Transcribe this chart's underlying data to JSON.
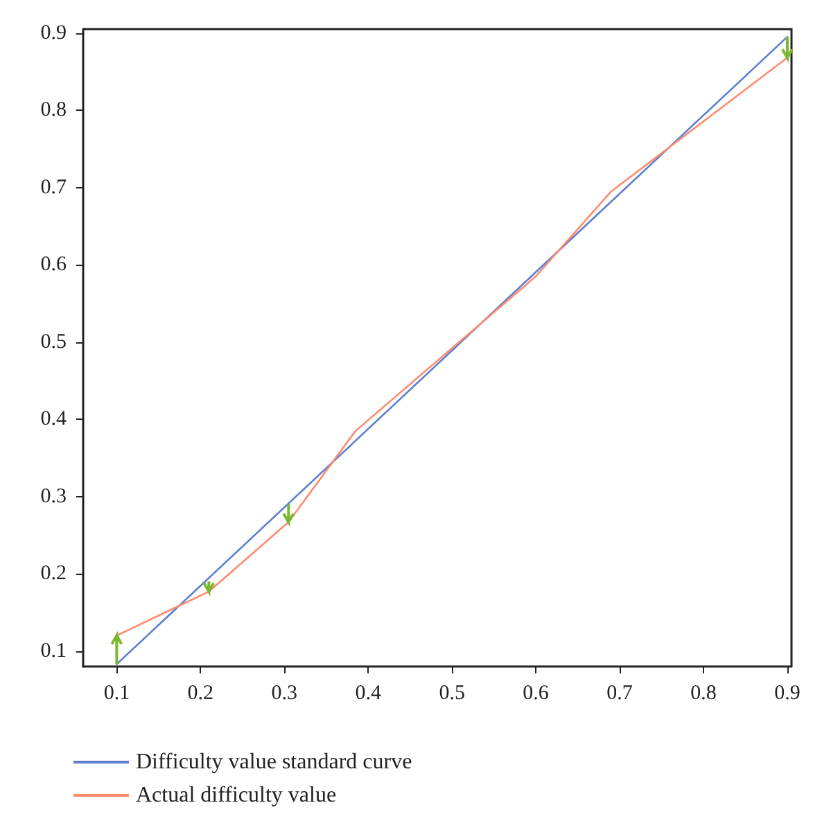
{
  "chart_data": {
    "type": "line",
    "xlim": [
      0.06,
      0.905
    ],
    "ylim": [
      0.08,
      0.905
    ],
    "xticks": [
      0.1,
      0.2,
      0.3,
      0.4,
      0.5,
      0.6,
      0.7,
      0.8,
      0.9
    ],
    "yticks": [
      0.1,
      0.2,
      0.3,
      0.4,
      0.5,
      0.6,
      0.7,
      0.8,
      0.9
    ],
    "series": [
      {
        "name": "Difficulty value standard curve",
        "color": "#5b7fcf",
        "x": [
          0.1,
          0.9
        ],
        "values": [
          0.083,
          0.895
        ]
      },
      {
        "name": "Actual difficulty value",
        "color": "#ff8a6e",
        "x": [
          0.1,
          0.21,
          0.305,
          0.385,
          0.6,
          0.69,
          0.9
        ],
        "values": [
          0.12,
          0.177,
          0.267,
          0.385,
          0.585,
          0.695,
          0.868
        ],
        "errors": [
          [
            0.083,
            0.12
          ],
          [
            0.177,
            0.19
          ],
          [
            0.267,
            0.29
          ],
          null,
          null,
          null,
          [
            0.868,
            0.895
          ]
        ]
      }
    ],
    "grid": false,
    "legend": "bottom left",
    "marker": "none",
    "line_style": "solid"
  }
}
